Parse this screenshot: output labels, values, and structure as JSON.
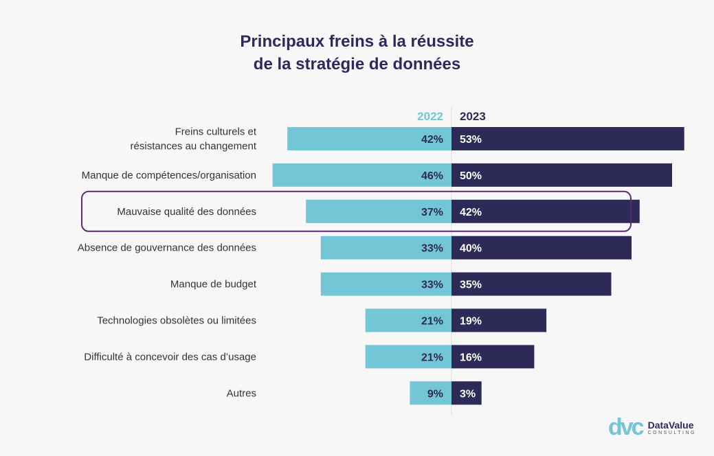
{
  "chart_data": {
    "type": "bar",
    "orientation": "horizontal-diverging",
    "title": "Principaux freins à la réussite de la stratégie de données",
    "title_lines": [
      "Principaux freins à la réussite",
      "de la stratégie de données"
    ],
    "categories": [
      "Freins culturels et|résistances au changement",
      "Manque de compétences/organisation",
      "Mauvaise qualité des données",
      "Absence de gouvernance des données",
      "Manque de budget",
      "Technologies obsolètes ou limitées",
      "Difficulté à concevoir des cas d’usage",
      "Autres"
    ],
    "series": [
      {
        "name": "2022",
        "values": [
          42,
          46,
          37,
          33,
          33,
          21,
          21,
          9
        ],
        "color": "#73c6d6",
        "side": "left"
      },
      {
        "name": "2023",
        "values": [
          53,
          50,
          42,
          40,
          35,
          19,
          16,
          3
        ],
        "color": "#2e2a57",
        "side": "right"
      }
    ],
    "unit": "%",
    "highlighted_category": "Mauvaise qualité des données",
    "highlight_color": "#5a2a6e",
    "grid": false
  },
  "brand": {
    "name": "DataValue",
    "sub": "CONSULTING",
    "mark": "dvc"
  }
}
